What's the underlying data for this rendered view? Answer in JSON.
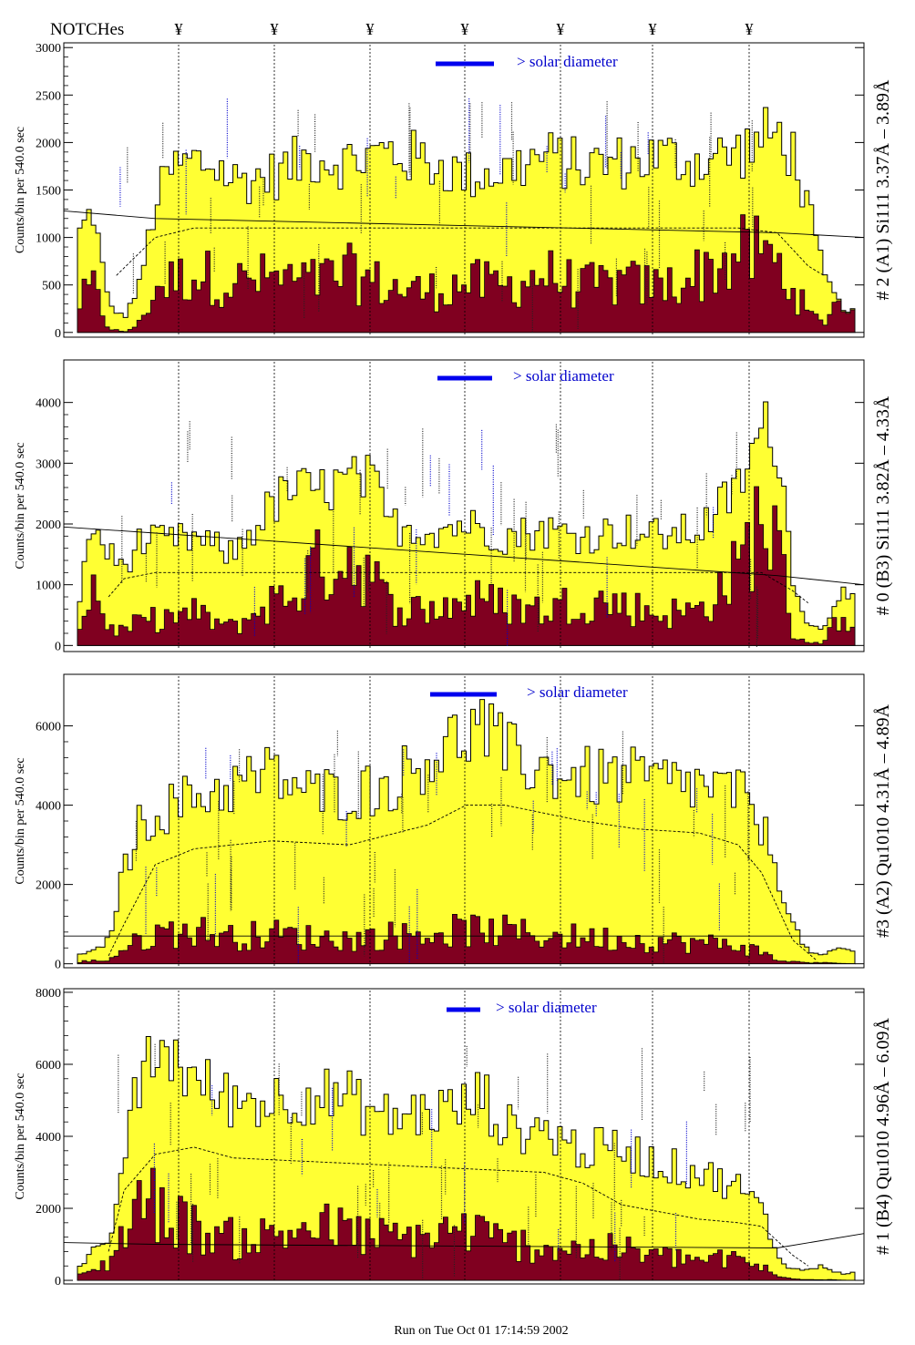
{
  "header": {
    "notches_label": "NOTCHes",
    "notch_symbol": "¥"
  },
  "footer": {
    "run_text": "Run on Tue Oct 01 17:14:59 2002"
  },
  "colors": {
    "fill_total": "#ffff33",
    "fill_sub": "#800020",
    "solar_bar": "#0000ee",
    "legend_text": "#0000cc"
  },
  "chart_data": [
    {
      "type": "bar",
      "panel": "# 2 (A1) Si111  3.37Å – 3.89Å",
      "ylabel": "Counts/bin per   540.0 sec",
      "yticks": [
        0,
        500,
        1000,
        1500,
        2000,
        2500,
        3000
      ],
      "ylim": [
        -50,
        3050
      ],
      "legend": "> solar diameter",
      "total_profile": [
        [
          0,
          1000
        ],
        [
          2,
          1300
        ],
        [
          4,
          300
        ],
        [
          6,
          150
        ],
        [
          8,
          500
        ],
        [
          10,
          1350
        ],
        [
          12,
          1700
        ],
        [
          15,
          1800
        ],
        [
          18,
          1750
        ],
        [
          20,
          1600
        ],
        [
          25,
          1650
        ],
        [
          30,
          1850
        ],
        [
          35,
          1800
        ],
        [
          40,
          1900
        ],
        [
          45,
          1800
        ],
        [
          50,
          1650
        ],
        [
          55,
          1700
        ],
        [
          60,
          1850
        ],
        [
          65,
          1750
        ],
        [
          70,
          1800
        ],
        [
          75,
          1850
        ],
        [
          80,
          1800
        ],
        [
          85,
          1900
        ],
        [
          90,
          2100
        ],
        [
          92,
          1900
        ],
        [
          94,
          1300
        ],
        [
          96,
          600
        ],
        [
          98,
          300
        ],
        [
          100,
          200
        ]
      ],
      "sub_profile": [
        [
          0,
          300
        ],
        [
          2,
          500
        ],
        [
          4,
          50
        ],
        [
          6,
          0
        ],
        [
          8,
          100
        ],
        [
          10,
          500
        ],
        [
          15,
          650
        ],
        [
          20,
          550
        ],
        [
          25,
          600
        ],
        [
          30,
          550
        ],
        [
          35,
          650
        ],
        [
          40,
          500
        ],
        [
          45,
          450
        ],
        [
          50,
          550
        ],
        [
          55,
          500
        ],
        [
          60,
          650
        ],
        [
          65,
          500
        ],
        [
          70,
          550
        ],
        [
          75,
          500
        ],
        [
          80,
          650
        ],
        [
          85,
          850
        ],
        [
          88,
          900
        ],
        [
          90,
          750
        ],
        [
          92,
          500
        ],
        [
          94,
          200
        ],
        [
          96,
          100
        ],
        [
          98,
          450
        ],
        [
          100,
          300
        ]
      ],
      "model_curve": [
        [
          5,
          600
        ],
        [
          10,
          1000
        ],
        [
          15,
          1100
        ],
        [
          85,
          1100
        ],
        [
          90,
          1050
        ],
        [
          94,
          700
        ],
        [
          96,
          600
        ]
      ],
      "baseline": [
        [
          0,
          1280
        ],
        [
          10,
          1200
        ],
        [
          90,
          1050
        ],
        [
          100,
          1000
        ]
      ]
    },
    {
      "type": "bar",
      "panel": "# 0 (B3) Si111  3.82Å – 4.33Å",
      "ylabel": "Counts/bin per   540.0 sec",
      "yticks": [
        0,
        1000,
        2000,
        3000,
        4000
      ],
      "ylim": [
        -100,
        4700
      ],
      "legend": "> solar diameter",
      "total_profile": [
        [
          0,
          600
        ],
        [
          2,
          2000
        ],
        [
          4,
          1500
        ],
        [
          6,
          1300
        ],
        [
          8,
          1700
        ],
        [
          10,
          1700
        ],
        [
          15,
          1750
        ],
        [
          20,
          1500
        ],
        [
          25,
          2300
        ],
        [
          28,
          2600
        ],
        [
          30,
          2500
        ],
        [
          35,
          2700
        ],
        [
          38,
          2700
        ],
        [
          40,
          2000
        ],
        [
          45,
          1900
        ],
        [
          50,
          2000
        ],
        [
          55,
          1800
        ],
        [
          60,
          1900
        ],
        [
          65,
          1800
        ],
        [
          70,
          1900
        ],
        [
          75,
          1800
        ],
        [
          80,
          1900
        ],
        [
          85,
          2600
        ],
        [
          88,
          3500
        ],
        [
          90,
          3500
        ],
        [
          92,
          1200
        ],
        [
          94,
          300
        ],
        [
          96,
          300
        ],
        [
          98,
          900
        ],
        [
          100,
          700
        ]
      ],
      "sub_profile": [
        [
          0,
          200
        ],
        [
          2,
          1100
        ],
        [
          4,
          300
        ],
        [
          6,
          250
        ],
        [
          8,
          400
        ],
        [
          10,
          450
        ],
        [
          15,
          550
        ],
        [
          20,
          300
        ],
        [
          25,
          750
        ],
        [
          28,
          900
        ],
        [
          30,
          1300
        ],
        [
          35,
          1550
        ],
        [
          38,
          1200
        ],
        [
          40,
          700
        ],
        [
          45,
          600
        ],
        [
          50,
          800
        ],
        [
          55,
          700
        ],
        [
          60,
          600
        ],
        [
          65,
          800
        ],
        [
          70,
          700
        ],
        [
          75,
          550
        ],
        [
          80,
          600
        ],
        [
          85,
          1300
        ],
        [
          88,
          2300
        ],
        [
          90,
          1800
        ],
        [
          92,
          200
        ],
        [
          94,
          50
        ],
        [
          96,
          50
        ],
        [
          98,
          500
        ],
        [
          100,
          200
        ]
      ],
      "model_curve": [
        [
          4,
          800
        ],
        [
          6,
          1100
        ],
        [
          10,
          1200
        ],
        [
          85,
          1200
        ],
        [
          88,
          1200
        ],
        [
          92,
          900
        ],
        [
          94,
          700
        ]
      ],
      "baseline": [
        [
          0,
          1950
        ],
        [
          10,
          1850
        ],
        [
          90,
          1150
        ],
        [
          100,
          1000
        ]
      ]
    },
    {
      "type": "bar",
      "panel": "#3 (A2) Qu1010  4.31Å – 4.89Å",
      "ylabel": "Counts/bin per   540.0 sec",
      "yticks": [
        0,
        2000,
        4000,
        6000
      ],
      "ylim": [
        -100,
        7300
      ],
      "legend": "> solar diameter",
      "total_profile": [
        [
          0,
          200
        ],
        [
          2,
          300
        ],
        [
          4,
          600
        ],
        [
          6,
          2400
        ],
        [
          8,
          3500
        ],
        [
          10,
          3800
        ],
        [
          15,
          4200
        ],
        [
          20,
          4500
        ],
        [
          25,
          4800
        ],
        [
          30,
          4300
        ],
        [
          35,
          4300
        ],
        [
          40,
          4500
        ],
        [
          45,
          5200
        ],
        [
          50,
          5800
        ],
        [
          52,
          6000
        ],
        [
          55,
          5300
        ],
        [
          60,
          4900
        ],
        [
          65,
          4700
        ],
        [
          70,
          4700
        ],
        [
          75,
          4600
        ],
        [
          80,
          4500
        ],
        [
          85,
          4300
        ],
        [
          88,
          3500
        ],
        [
          90,
          2400
        ],
        [
          92,
          1000
        ],
        [
          94,
          300
        ],
        [
          96,
          200
        ],
        [
          98,
          400
        ],
        [
          100,
          300
        ]
      ],
      "sub_profile": [
        [
          0,
          50
        ],
        [
          4,
          100
        ],
        [
          6,
          400
        ],
        [
          10,
          800
        ],
        [
          15,
          900
        ],
        [
          20,
          700
        ],
        [
          25,
          800
        ],
        [
          30,
          700
        ],
        [
          35,
          650
        ],
        [
          40,
          750
        ],
        [
          45,
          800
        ],
        [
          50,
          900
        ],
        [
          55,
          850
        ],
        [
          60,
          750
        ],
        [
          65,
          700
        ],
        [
          70,
          650
        ],
        [
          75,
          600
        ],
        [
          80,
          550
        ],
        [
          85,
          500
        ],
        [
          88,
          300
        ],
        [
          90,
          100
        ],
        [
          92,
          50
        ],
        [
          100,
          0
        ]
      ],
      "model_curve": [
        [
          4,
          200
        ],
        [
          6,
          1000
        ],
        [
          10,
          2500
        ],
        [
          15,
          2900
        ],
        [
          25,
          3100
        ],
        [
          35,
          3000
        ],
        [
          45,
          3500
        ],
        [
          50,
          4000
        ],
        [
          55,
          4000
        ],
        [
          60,
          3800
        ],
        [
          65,
          3600
        ],
        [
          72,
          3400
        ],
        [
          80,
          3300
        ],
        [
          85,
          3000
        ],
        [
          88,
          2300
        ],
        [
          92,
          600
        ],
        [
          95,
          100
        ]
      ],
      "baseline": [
        [
          0,
          700
        ],
        [
          100,
          700
        ]
      ]
    },
    {
      "type": "bar",
      "panel": "# 1 (B4) Qu1010 4.96Å – 6.09Å",
      "ylabel": "Counts/bin per   540.0 sec",
      "yticks": [
        0,
        2000,
        4000,
        6000,
        8000
      ],
      "ylim": [
        -100,
        8100
      ],
      "legend": "> solar diameter",
      "total_profile": [
        [
          0,
          300
        ],
        [
          2,
          800
        ],
        [
          4,
          900
        ],
        [
          6,
          3500
        ],
        [
          8,
          5500
        ],
        [
          10,
          6200
        ],
        [
          12,
          6400
        ],
        [
          15,
          5500
        ],
        [
          20,
          5000
        ],
        [
          25,
          5000
        ],
        [
          30,
          5200
        ],
        [
          35,
          5000
        ],
        [
          40,
          4500
        ],
        [
          45,
          4700
        ],
        [
          50,
          4800
        ],
        [
          52,
          5200
        ],
        [
          55,
          4200
        ],
        [
          60,
          4200
        ],
        [
          65,
          3600
        ],
        [
          70,
          3700
        ],
        [
          75,
          3200
        ],
        [
          80,
          3000
        ],
        [
          85,
          2600
        ],
        [
          88,
          2000
        ],
        [
          90,
          700
        ],
        [
          92,
          300
        ],
        [
          94,
          300
        ],
        [
          96,
          400
        ],
        [
          98,
          200
        ],
        [
          100,
          200
        ]
      ],
      "sub_profile": [
        [
          0,
          100
        ],
        [
          2,
          300
        ],
        [
          4,
          500
        ],
        [
          6,
          1500
        ],
        [
          8,
          2400
        ],
        [
          10,
          2200
        ],
        [
          15,
          1500
        ],
        [
          20,
          1200
        ],
        [
          25,
          1300
        ],
        [
          30,
          1600
        ],
        [
          35,
          1400
        ],
        [
          40,
          1200
        ],
        [
          45,
          1300
        ],
        [
          50,
          1500
        ],
        [
          55,
          1100
        ],
        [
          60,
          1000
        ],
        [
          65,
          900
        ],
        [
          70,
          900
        ],
        [
          75,
          700
        ],
        [
          80,
          600
        ],
        [
          85,
          600
        ],
        [
          88,
          400
        ],
        [
          90,
          100
        ],
        [
          92,
          50
        ],
        [
          100,
          0
        ]
      ],
      "model_curve": [
        [
          4,
          800
        ],
        [
          6,
          2500
        ],
        [
          10,
          3500
        ],
        [
          15,
          3700
        ],
        [
          20,
          3400
        ],
        [
          30,
          3300
        ],
        [
          40,
          3200
        ],
        [
          50,
          3100
        ],
        [
          60,
          3000
        ],
        [
          65,
          2700
        ],
        [
          70,
          2100
        ],
        [
          75,
          1900
        ],
        [
          80,
          1700
        ],
        [
          85,
          1600
        ],
        [
          88,
          1500
        ],
        [
          92,
          700
        ],
        [
          94,
          400
        ]
      ],
      "baseline": [
        [
          0,
          1050
        ],
        [
          10,
          1000
        ],
        [
          90,
          900
        ],
        [
          100,
          1300
        ]
      ]
    }
  ]
}
